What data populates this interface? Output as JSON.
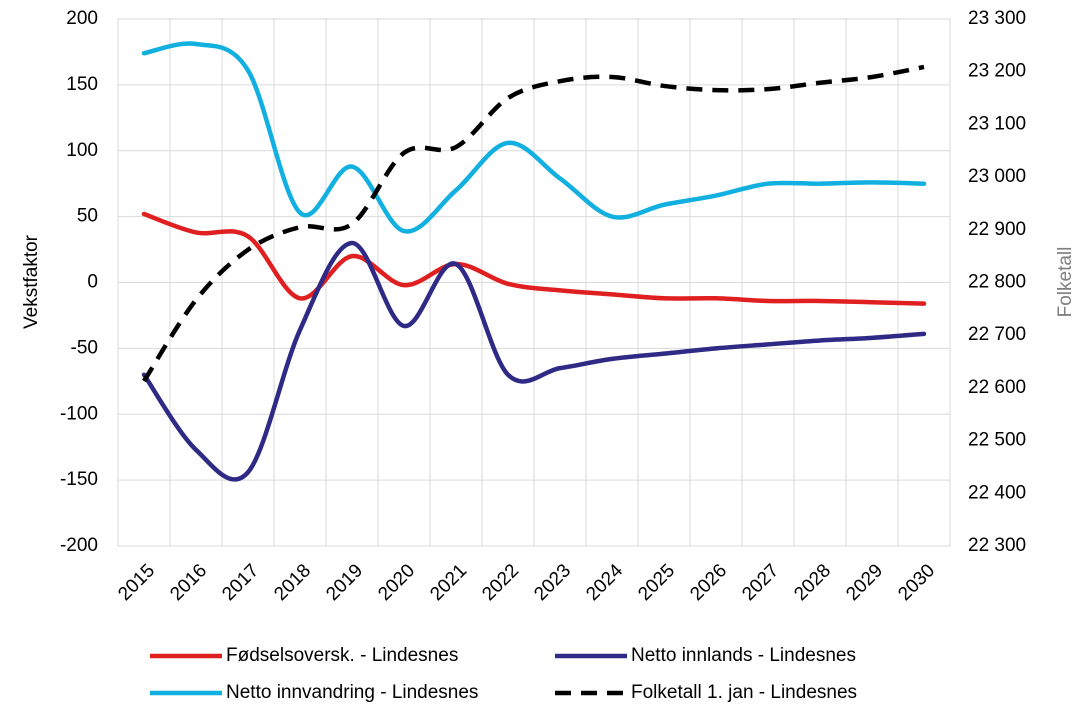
{
  "chart_data": {
    "type": "line",
    "categories": [
      "2015",
      "2016",
      "2017",
      "2018",
      "2019",
      "2020",
      "2021",
      "2022",
      "2023",
      "2024",
      "2025",
      "2026",
      "2027",
      "2028",
      "2029",
      "2030"
    ],
    "ylabel": "Vekstfaktor",
    "y2label": "Folketall",
    "ylim": [
      -200,
      200
    ],
    "yticks": [
      -200,
      -150,
      -100,
      -50,
      0,
      50,
      100,
      150,
      200
    ],
    "y2lim": [
      22300,
      23300
    ],
    "y2ticks": [
      {
        "value": 22300,
        "label": "22 300"
      },
      {
        "value": 22400,
        "label": "22 400"
      },
      {
        "value": 22500,
        "label": "22 500"
      },
      {
        "value": 22600,
        "label": "22 600"
      },
      {
        "value": 22700,
        "label": "22 700"
      },
      {
        "value": 22800,
        "label": "22 800"
      },
      {
        "value": 22900,
        "label": "22 900"
      },
      {
        "value": 23000,
        "label": "23 000"
      },
      {
        "value": 23100,
        "label": "23 100"
      },
      {
        "value": 23200,
        "label": "23 200"
      },
      {
        "value": 23300,
        "label": "23 300"
      }
    ],
    "grid": true,
    "legend": "bottom",
    "series": [
      {
        "name": "Fødselsoversk. - Lindesnes",
        "color": "#e02020",
        "values": [
          52,
          38,
          35,
          -12,
          20,
          -2,
          14,
          -1,
          -6,
          -9,
          -12,
          -12,
          -14,
          -14,
          -15,
          -16
        ]
      },
      {
        "name": "Netto innlands - Lindesnes",
        "color": "#2e2a85",
        "values": [
          -70,
          -127,
          -144,
          -36,
          30,
          -33,
          14,
          -70,
          -65,
          -58,
          -54,
          -50,
          -47,
          -44,
          -42,
          -39
        ]
      },
      {
        "name": "Netto innvandring - Lindesnes",
        "color": "#11b0e0",
        "values": [
          174,
          181,
          161,
          53,
          88,
          39,
          70,
          106,
          79,
          50,
          59,
          66,
          75,
          75,
          76,
          75
        ]
      },
      {
        "name": "Folketall 1. jan - Lindesnes",
        "color": "#000000",
        "dashed": true,
        "axis": "y2",
        "values": [
          22613,
          22767,
          22862,
          22905,
          22911,
          23046,
          23057,
          23150,
          23182,
          23190,
          23173,
          23165,
          23167,
          23179,
          23190,
          23209
        ]
      }
    ]
  }
}
